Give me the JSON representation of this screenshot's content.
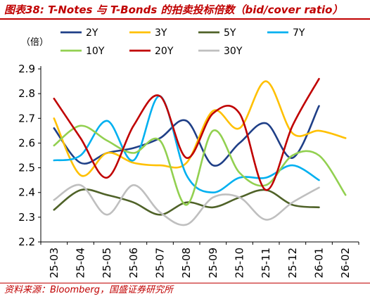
{
  "figure": {
    "title": "图表38:  T-Notes 与 T-Bonds 的拍卖投标倍数（bid/cover ratio）",
    "source": "资料来源：Bloomberg，国盛证券研究所"
  },
  "chart_data": {
    "type": "line",
    "title": "",
    "xlabel": "",
    "ylabel": "（倍）",
    "ylim": [
      2.2,
      2.9
    ],
    "yticks": [
      "2.2",
      "2.3",
      "2.4",
      "2.5",
      "2.6",
      "2.7",
      "2.8",
      "2.9"
    ],
    "categories": [
      "25-03",
      "25-04",
      "25-05",
      "25-06",
      "25-07",
      "25-08",
      "25-09",
      "25-10",
      "25-11",
      "25-12",
      "26-01",
      "26-02"
    ],
    "legend_position": "top",
    "series": [
      {
        "name": "2Y",
        "color": "#1f3f87",
        "values": [
          2.66,
          2.52,
          2.56,
          2.58,
          2.62,
          2.69,
          2.51,
          2.6,
          2.68,
          2.54,
          2.75,
          null
        ]
      },
      {
        "name": "3Y",
        "color": "#ffc000",
        "values": [
          2.7,
          2.47,
          2.56,
          2.52,
          2.51,
          2.52,
          2.73,
          2.66,
          2.85,
          2.64,
          2.65,
          2.62
        ]
      },
      {
        "name": "5Y",
        "color": "#4f6228",
        "values": [
          2.33,
          2.41,
          2.39,
          2.36,
          2.31,
          2.36,
          2.34,
          2.38,
          2.41,
          2.35,
          2.34,
          null
        ]
      },
      {
        "name": "7Y",
        "color": "#00b0f0",
        "values": [
          2.53,
          2.55,
          2.69,
          2.53,
          2.79,
          2.47,
          2.4,
          2.46,
          2.46,
          2.51,
          2.45,
          null
        ]
      },
      {
        "name": "10Y",
        "color": "#92d050",
        "values": [
          2.59,
          2.67,
          2.61,
          2.56,
          2.61,
          2.35,
          2.65,
          2.48,
          2.43,
          2.55,
          2.55,
          2.39
        ]
      },
      {
        "name": "20Y",
        "color": "#c00000",
        "values": [
          2.78,
          2.62,
          2.46,
          2.67,
          2.79,
          2.54,
          2.72,
          2.72,
          2.41,
          2.67,
          2.86,
          null
        ]
      },
      {
        "name": "30Y",
        "color": "#bfbfbf",
        "values": [
          2.37,
          2.43,
          2.31,
          2.43,
          2.32,
          2.27,
          2.38,
          2.38,
          2.29,
          2.36,
          2.42,
          null
        ]
      }
    ]
  }
}
